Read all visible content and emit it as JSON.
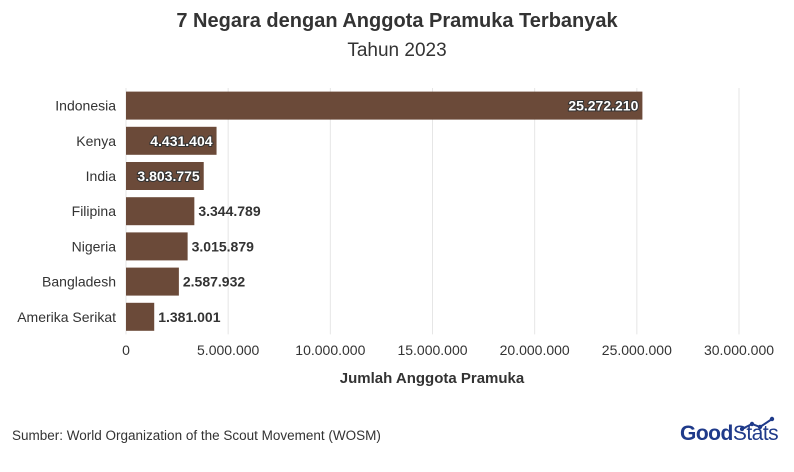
{
  "chart_data": {
    "type": "bar",
    "orientation": "horizontal",
    "title": "7 Negara dengan Anggota Pramuka Terbanyak",
    "subtitle": "Tahun 2023",
    "xlabel": "Jumlah Anggota Pramuka",
    "ylabel": "",
    "categories": [
      "Indonesia",
      "Kenya",
      "India",
      "Filipina",
      "Nigeria",
      "Bangladesh",
      "Amerika Serikat"
    ],
    "values": [
      25272210,
      4431404,
      3803775,
      3344789,
      3015879,
      2587932,
      1381001
    ],
    "value_labels": [
      "25.272.210",
      "4.431.404",
      "3.803.775",
      "3.344.789",
      "3.015.879",
      "2.587.932",
      "1.381.001"
    ],
    "xlim": [
      0,
      30000000
    ],
    "xticks": [
      0,
      5000000,
      10000000,
      15000000,
      20000000,
      25000000,
      30000000
    ],
    "xtick_labels": [
      "0",
      "5.000.000",
      "10.000.000",
      "15.000.000",
      "20.000.000",
      "25.000.000",
      "30.000.000"
    ],
    "grid": true,
    "bar_color": "#6b4a39"
  },
  "footer": {
    "source": "Sumber: World Organization of the Scout Movement (WOSM)",
    "logo_good": "Good",
    "logo_stats": "Stats",
    "logo_color": "#1f3a8a"
  }
}
